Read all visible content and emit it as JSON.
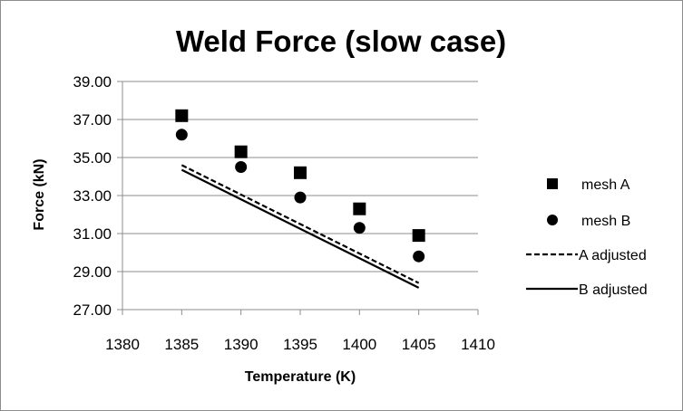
{
  "chart_data": {
    "type": "scatter",
    "title": "Weld Force (slow case)",
    "xlabel": "Temperature (K)",
    "ylabel": "Force (kN)",
    "xlim": [
      1380,
      1410
    ],
    "ylim": [
      27,
      39
    ],
    "x_ticks": [
      "1380",
      "1385",
      "1390",
      "1395",
      "1400",
      "1405",
      "1410"
    ],
    "y_ticks": [
      "27.00",
      "29.00",
      "31.00",
      "33.00",
      "35.00",
      "37.00",
      "39.00"
    ],
    "grid": "horizontal",
    "legend_position": "right",
    "series": [
      {
        "name": "mesh A",
        "kind": "marker",
        "marker": "square",
        "x": [
          1385,
          1390,
          1395,
          1400,
          1405
        ],
        "y": [
          37.2,
          35.3,
          34.2,
          32.3,
          30.9
        ]
      },
      {
        "name": "mesh B",
        "kind": "marker",
        "marker": "circle",
        "x": [
          1385,
          1390,
          1395,
          1400,
          1405
        ],
        "y": [
          36.2,
          34.5,
          32.9,
          31.3,
          29.8
        ]
      },
      {
        "name": "A adjusted",
        "kind": "line",
        "style": "dashed",
        "x": [
          1385,
          1405
        ],
        "y": [
          34.6,
          28.4
        ]
      },
      {
        "name": "B adjusted",
        "kind": "line",
        "style": "solid",
        "x": [
          1385,
          1405
        ],
        "y": [
          34.35,
          28.15
        ]
      }
    ]
  }
}
